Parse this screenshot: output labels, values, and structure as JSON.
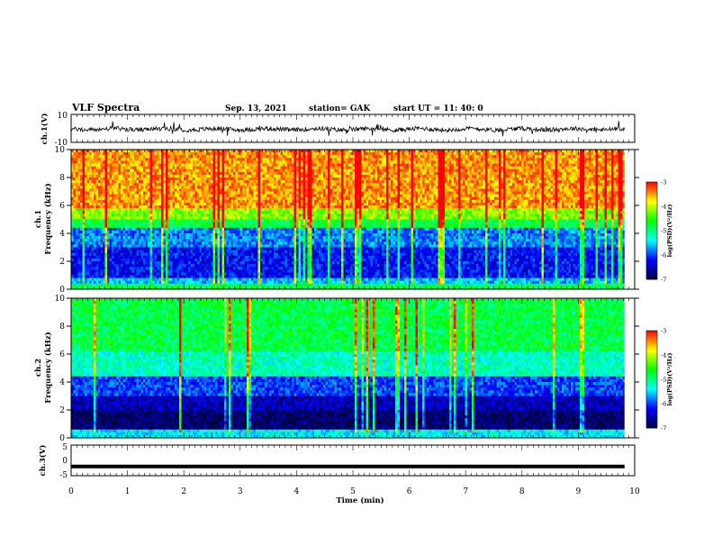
{
  "header": {
    "title": "VLF Spectra",
    "date": "Sep. 13, 2021",
    "station": "station= GAK",
    "start_ut": "start  UT =   11: 40: 0"
  },
  "chart_data": [
    {
      "type": "line",
      "name": "ch.1 waveform",
      "ylabel": "ch.1(V)",
      "ylim": [
        -10,
        10
      ],
      "yticks": [
        "10",
        "-10"
      ],
      "xlim": [
        0,
        10
      ]
    },
    {
      "type": "heatmap",
      "name": "ch.1 spectrogram",
      "ylabel_top": "ch.1",
      "ylabel": "Frequency (kHz)",
      "ylim": [
        0,
        10
      ],
      "yticks": [
        "0",
        "2",
        "4",
        "6",
        "8",
        "10"
      ],
      "xlim": [
        0,
        10
      ],
      "colorbar": {
        "label": "log(PSD)(V²/Hz)",
        "range": [
          -7,
          -3
        ],
        "ticks": [
          "-3",
          "-4",
          "-5",
          "-6",
          "-7"
        ]
      }
    },
    {
      "type": "heatmap",
      "name": "ch.2 spectrogram",
      "ylabel_top": "ch.2",
      "ylabel": "Frequency (kHz)",
      "ylim": [
        0,
        10
      ],
      "yticks": [
        "0",
        "2",
        "4",
        "6",
        "8",
        "10"
      ],
      "xlim": [
        0,
        10
      ],
      "colorbar": {
        "label": "log(PSD)(V²/Hz)",
        "range": [
          -7,
          -3
        ],
        "ticks": [
          "-3",
          "-4",
          "-5",
          "-6",
          "-7"
        ]
      }
    },
    {
      "type": "line",
      "name": "ch.3 waveform",
      "ylabel": "ch.3(V)",
      "ylim": [
        -5,
        5
      ],
      "yticks": [
        "5",
        "0",
        "-5"
      ],
      "xlim": [
        0,
        10
      ],
      "constant_value": -2
    }
  ],
  "xaxis": {
    "label": "Time (min)",
    "ticks": [
      "0",
      "1",
      "2",
      "3",
      "4",
      "5",
      "6",
      "7",
      "8",
      "9",
      "10"
    ]
  },
  "colors": {
    "colormap": [
      "#000040",
      "#0000ff",
      "#00ffff",
      "#00ff00",
      "#ffff00",
      "#ff0000",
      "#ffffff"
    ]
  }
}
